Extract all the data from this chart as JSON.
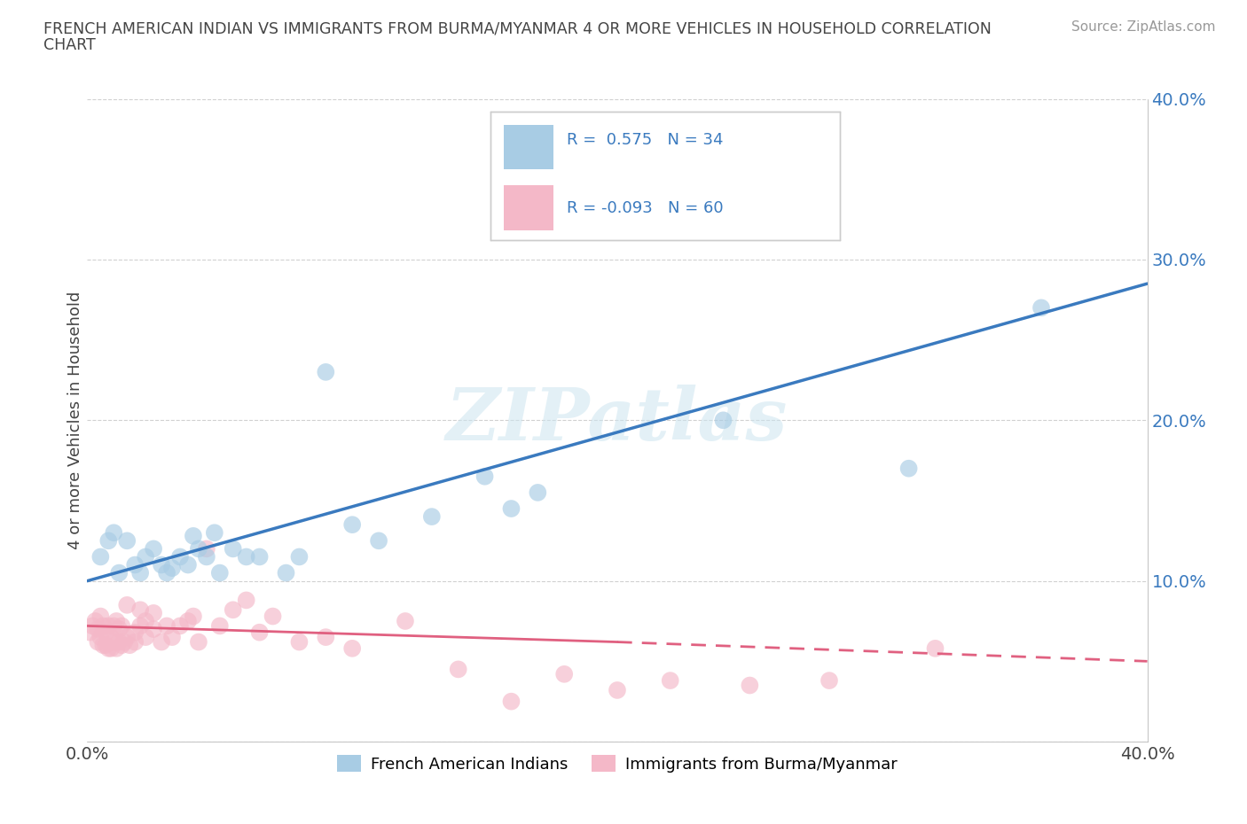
{
  "title_line1": "FRENCH AMERICAN INDIAN VS IMMIGRANTS FROM BURMA/MYANMAR 4 OR MORE VEHICLES IN HOUSEHOLD CORRELATION",
  "title_line2": "CHART",
  "source": "Source: ZipAtlas.com",
  "ylabel": "4 or more Vehicles in Household",
  "xlim": [
    0.0,
    0.4
  ],
  "ylim": [
    0.0,
    0.4
  ],
  "xticks": [
    0.0,
    0.1,
    0.2,
    0.3,
    0.4
  ],
  "yticks": [
    0.0,
    0.1,
    0.2,
    0.3,
    0.4
  ],
  "legend1_label": "French American Indians",
  "legend2_label": "Immigrants from Burma/Myanmar",
  "R1": 0.575,
  "N1": 34,
  "R2": -0.093,
  "N2": 60,
  "color1": "#a8cce4",
  "color2": "#f4b8c8",
  "line_color1": "#3a7abf",
  "line_color2": "#e06080",
  "watermark": "ZIPatlas",
  "blue_scatter_x": [
    0.005,
    0.008,
    0.01,
    0.012,
    0.015,
    0.018,
    0.02,
    0.022,
    0.025,
    0.028,
    0.03,
    0.032,
    0.035,
    0.038,
    0.04,
    0.042,
    0.045,
    0.048,
    0.05,
    0.055,
    0.06,
    0.065,
    0.075,
    0.08,
    0.09,
    0.1,
    0.11,
    0.13,
    0.15,
    0.16,
    0.17,
    0.24,
    0.31,
    0.36
  ],
  "blue_scatter_y": [
    0.115,
    0.125,
    0.13,
    0.105,
    0.125,
    0.11,
    0.105,
    0.115,
    0.12,
    0.11,
    0.105,
    0.108,
    0.115,
    0.11,
    0.128,
    0.12,
    0.115,
    0.13,
    0.105,
    0.12,
    0.115,
    0.115,
    0.105,
    0.115,
    0.23,
    0.135,
    0.125,
    0.14,
    0.165,
    0.145,
    0.155,
    0.2,
    0.17,
    0.27
  ],
  "pink_scatter_x": [
    0.001,
    0.002,
    0.003,
    0.004,
    0.004,
    0.005,
    0.005,
    0.006,
    0.006,
    0.007,
    0.007,
    0.008,
    0.008,
    0.009,
    0.009,
    0.01,
    0.01,
    0.011,
    0.011,
    0.012,
    0.012,
    0.013,
    0.013,
    0.014,
    0.015,
    0.015,
    0.016,
    0.018,
    0.018,
    0.02,
    0.02,
    0.022,
    0.022,
    0.025,
    0.025,
    0.028,
    0.03,
    0.032,
    0.035,
    0.038,
    0.04,
    0.042,
    0.045,
    0.05,
    0.055,
    0.06,
    0.065,
    0.07,
    0.08,
    0.09,
    0.1,
    0.12,
    0.14,
    0.16,
    0.18,
    0.2,
    0.22,
    0.25,
    0.28,
    0.32
  ],
  "pink_scatter_y": [
    0.068,
    0.072,
    0.075,
    0.07,
    0.062,
    0.078,
    0.065,
    0.072,
    0.06,
    0.068,
    0.06,
    0.072,
    0.058,
    0.065,
    0.058,
    0.072,
    0.062,
    0.075,
    0.058,
    0.07,
    0.062,
    0.06,
    0.072,
    0.062,
    0.085,
    0.065,
    0.06,
    0.068,
    0.062,
    0.072,
    0.082,
    0.075,
    0.065,
    0.07,
    0.08,
    0.062,
    0.072,
    0.065,
    0.072,
    0.075,
    0.078,
    0.062,
    0.12,
    0.072,
    0.082,
    0.088,
    0.068,
    0.078,
    0.062,
    0.065,
    0.058,
    0.075,
    0.045,
    0.025,
    0.042,
    0.032,
    0.038,
    0.035,
    0.038,
    0.058
  ],
  "blue_line_x0": 0.0,
  "blue_line_y0": 0.1,
  "blue_line_x1": 0.4,
  "blue_line_y1": 0.285,
  "pink_line_solid_x0": 0.0,
  "pink_line_solid_y0": 0.072,
  "pink_line_solid_x1": 0.2,
  "pink_line_solid_y1": 0.062,
  "pink_line_dash_x0": 0.2,
  "pink_line_dash_y0": 0.062,
  "pink_line_dash_x1": 0.4,
  "pink_line_dash_y1": 0.05
}
